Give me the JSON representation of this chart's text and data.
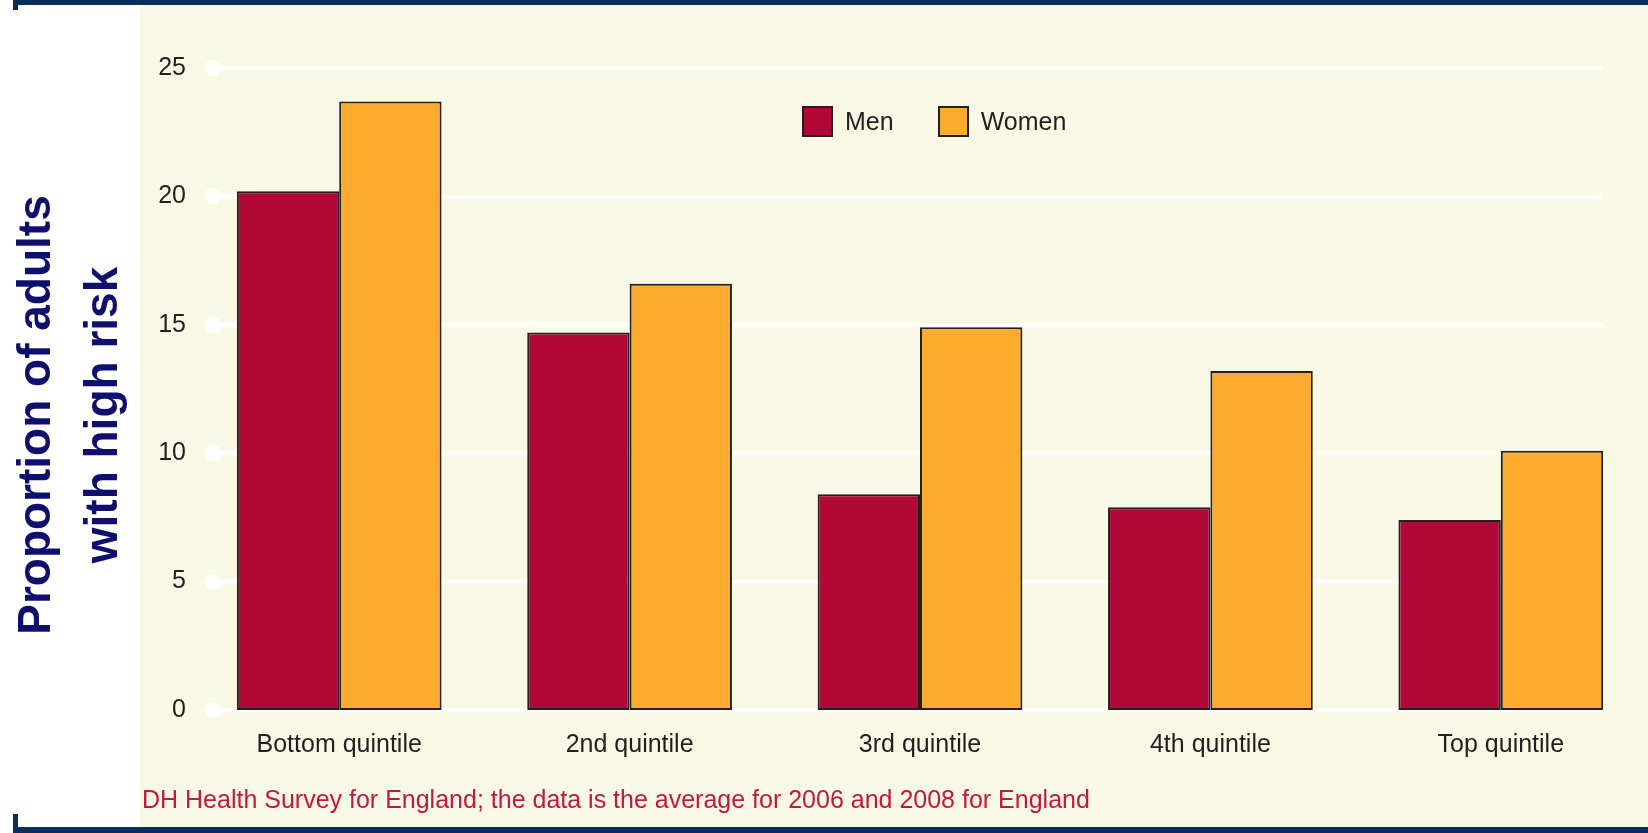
{
  "chart_data": {
    "type": "bar",
    "ylabel": "Proportion of adults with high risk",
    "categories": [
      "Bottom quintile",
      "2nd quintile",
      "3rd quintile",
      "4th quintile",
      "Top quintile"
    ],
    "series": [
      {
        "name": "Men",
        "color": "#b20838",
        "values": [
          20.2,
          14.7,
          8.4,
          7.9,
          7.4
        ]
      },
      {
        "name": "Women",
        "color": "#fbab2d",
        "values": [
          23.7,
          16.6,
          14.9,
          13.2,
          10.1
        ]
      }
    ],
    "ylim": [
      0,
      25
    ],
    "yticks": [
      0,
      5,
      10,
      15,
      20,
      25
    ],
    "grid": "y",
    "legend": "top",
    "annotations": [
      "DH Health Survey for England; the data is the average for 2006 and 2008 for England"
    ]
  }
}
